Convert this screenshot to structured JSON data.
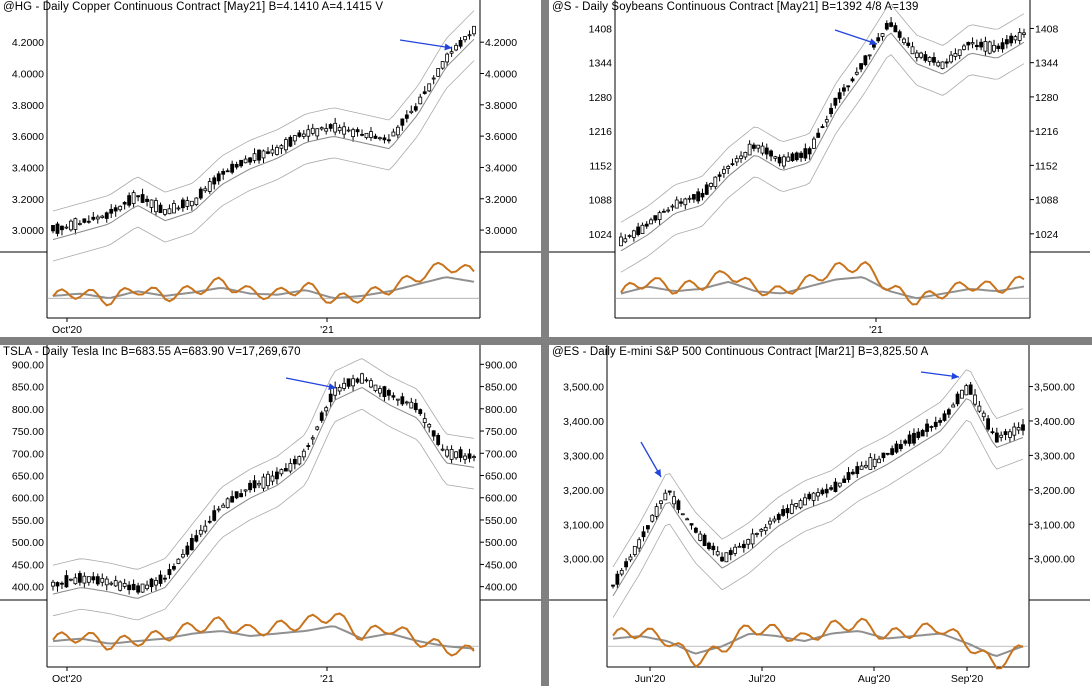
{
  "charts": [
    {
      "title": "@HG - Daily  Copper Continuous Contract [May21]  B=4.1410  A=4.1415  V",
      "symbol": "@HG",
      "type": "candlestick",
      "y_ticks": [
        "3.0000",
        "3.2000",
        "3.4000",
        "3.6000",
        "3.8000",
        "4.0000",
        "4.2000"
      ],
      "y_tick_values": [
        3.0,
        3.2,
        3.4,
        3.6,
        3.8,
        4.0,
        4.2
      ],
      "ylim": [
        2.86,
        4.38
      ],
      "x_ticks": [
        "Oct'20",
        "'21"
      ],
      "axis_side": "both",
      "annotation": "blue-arrow-near-high",
      "chart_data": {
        "type": "line",
        "x": [
          0,
          10,
          20,
          30,
          40,
          50,
          60,
          70,
          80,
          90,
          100,
          110,
          120,
          130,
          140,
          150
        ],
        "price": [
          3.0,
          3.05,
          3.1,
          3.22,
          3.12,
          3.18,
          3.35,
          3.45,
          3.52,
          3.62,
          3.66,
          3.62,
          3.58,
          3.8,
          4.1,
          4.28
        ],
        "oscillator": [
          0.1,
          0.2,
          0.0,
          0.3,
          0.1,
          0.25,
          0.45,
          0.2,
          0.15,
          0.35,
          0.0,
          0.1,
          0.3,
          0.6,
          0.9,
          0.7
        ]
      }
    },
    {
      "title": "@S - Daily  Soybeans Continuous Contract [May21]  B=1392 4/8  A=139",
      "symbol": "@S",
      "type": "candlestick",
      "y_ticks": [
        "1024",
        "1088",
        "1152",
        "1216",
        "1280",
        "1344",
        "1408"
      ],
      "y_tick_values": [
        1024,
        1088,
        1152,
        1216,
        1280,
        1344,
        1408
      ],
      "ylim": [
        990,
        1435
      ],
      "x_ticks": [
        "'21"
      ],
      "axis_side": "right",
      "annotation": "blue-arrow-near-high",
      "chart_data": {
        "type": "line",
        "x": [
          0,
          10,
          20,
          30,
          40,
          50,
          60,
          70,
          80,
          90,
          100,
          110,
          120,
          130,
          140,
          150
        ],
        "price": [
          1010,
          1040,
          1080,
          1095,
          1150,
          1190,
          1160,
          1175,
          1270,
          1340,
          1420,
          1360,
          1340,
          1380,
          1370,
          1400
        ],
        "oscillator": [
          0.2,
          0.5,
          0.3,
          0.4,
          0.7,
          0.3,
          0.2,
          0.5,
          0.8,
          0.9,
          0.3,
          0.0,
          0.2,
          0.4,
          0.3,
          0.5
        ]
      }
    },
    {
      "title": "TSLA - Daily  Tesla Inc  B=683.55  A=683.90  V=17,269,670",
      "symbol": "TSLA",
      "type": "candlestick",
      "y_ticks": [
        "400.00",
        "450.00",
        "500.00",
        "550.00",
        "600.00",
        "650.00",
        "700.00",
        "750.00",
        "800.00",
        "850.00",
        "900.00"
      ],
      "y_tick_values": [
        400,
        450,
        500,
        550,
        600,
        650,
        700,
        750,
        800,
        850,
        900
      ],
      "ylim": [
        370,
        912
      ],
      "x_ticks": [
        "Oct'20",
        "'21"
      ],
      "axis_side": "both",
      "annotation": "blue-arrow-near-high",
      "chart_data": {
        "type": "line",
        "x": [
          0,
          10,
          20,
          30,
          40,
          50,
          60,
          70,
          80,
          90,
          100,
          110,
          120,
          130,
          140,
          150
        ],
        "price": [
          405,
          420,
          410,
          395,
          420,
          500,
          580,
          620,
          650,
          700,
          840,
          870,
          830,
          800,
          700,
          690
        ],
        "oscillator": [
          0.2,
          0.3,
          0.1,
          0.2,
          0.3,
          0.5,
          0.6,
          0.4,
          0.5,
          0.6,
          0.8,
          0.3,
          0.5,
          0.2,
          0.0,
          -0.1
        ]
      }
    },
    {
      "title": "@ES - Daily  E-mini S&P 500 Continuous Contract [Mar21]  B=3,825.50  A",
      "symbol": "@ES",
      "type": "candlestick",
      "y_ticks": [
        "3,000.00",
        "3,100.00",
        "3,200.00",
        "3,300.00",
        "3,400.00",
        "3,500.00"
      ],
      "y_tick_values": [
        3000,
        3100,
        3200,
        3300,
        3400,
        3500
      ],
      "ylim": [
        2880,
        3580
      ],
      "x_ticks": [
        "Jun'20",
        "Jul'20",
        "Aug'20",
        "Sep'20"
      ],
      "axis_side": "right",
      "annotation": "two-blue-arrows",
      "chart_data": {
        "type": "line",
        "x": [
          0,
          10,
          20,
          30,
          40,
          50,
          60,
          70,
          80,
          90,
          100,
          110,
          120,
          130,
          140,
          150
        ],
        "price": [
          2920,
          3050,
          3200,
          3080,
          3000,
          3050,
          3120,
          3170,
          3200,
          3260,
          3300,
          3350,
          3400,
          3500,
          3350,
          3380
        ],
        "oscillator": [
          0.3,
          0.4,
          0.2,
          -0.3,
          0.0,
          0.5,
          0.4,
          0.2,
          0.5,
          0.6,
          0.3,
          0.4,
          0.5,
          0.1,
          -0.4,
          0.0
        ]
      }
    }
  ],
  "colors": {
    "candle": "#000000",
    "bands": "#aaaaaa",
    "ma": "#888888",
    "osc_fast": "#c8741e",
    "osc_slow": "#909090",
    "arrow": "#2244dd",
    "divider": "#808080"
  }
}
